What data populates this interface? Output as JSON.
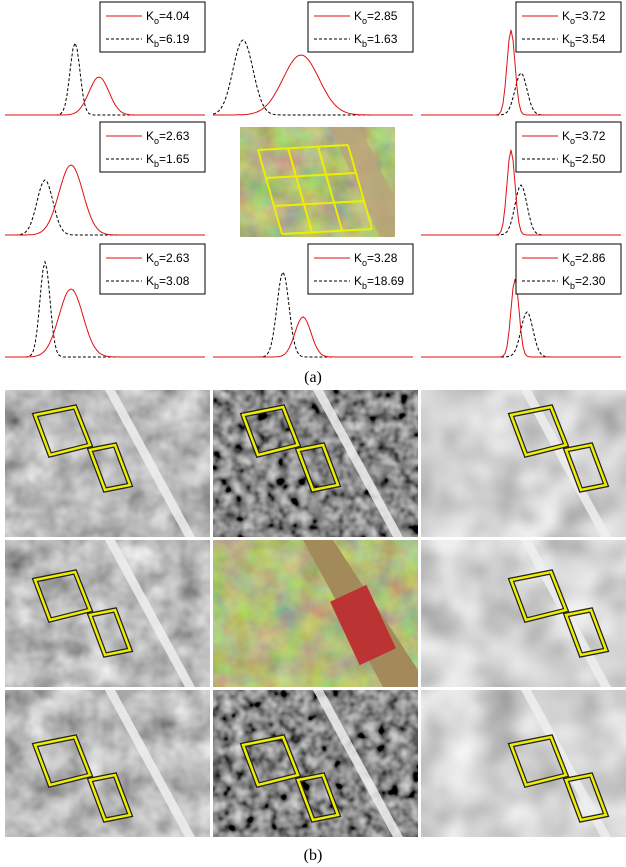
{
  "panels": [
    {
      "legend": [
        {
          "symbol": "K",
          "subscript": "o",
          "text": "=4.04"
        },
        {
          "symbol": "K",
          "subscript": "b",
          "text": "=6.19"
        }
      ]
    },
    {
      "legend": [
        {
          "symbol": "K",
          "subscript": "o",
          "text": "=2.85"
        },
        {
          "symbol": "K",
          "subscript": "b",
          "text": "=1.63"
        }
      ]
    },
    {
      "legend": [
        {
          "symbol": "K",
          "subscript": "o",
          "text": "=3.72"
        },
        {
          "symbol": "K",
          "subscript": "b",
          "text": "=3.54"
        }
      ]
    },
    {
      "legend": [
        {
          "symbol": "K",
          "subscript": "o",
          "text": "=2.63"
        },
        {
          "symbol": "K",
          "subscript": "b",
          "text": "=1.65"
        }
      ]
    },
    {
      "legend": [
        {
          "symbol": "K",
          "subscript": "o",
          "text": "=3.72"
        },
        {
          "symbol": "K",
          "subscript": "b",
          "text": "=2.50"
        }
      ]
    },
    {
      "legend": [
        {
          "symbol": "K",
          "subscript": "o",
          "text": "=2.63"
        },
        {
          "symbol": "K",
          "subscript": "b",
          "text": "=3.08"
        }
      ]
    },
    {
      "legend": [
        {
          "symbol": "K",
          "subscript": "o",
          "text": "=3.28"
        },
        {
          "symbol": "K",
          "subscript": "b",
          "text": "=18.69"
        }
      ]
    },
    {
      "legend": [
        {
          "symbol": "K",
          "subscript": "o",
          "text": "=2.86"
        },
        {
          "symbol": "K",
          "subscript": "b",
          "text": "=2.30"
        }
      ]
    }
  ],
  "captions": {
    "a": "(a)",
    "b": "(b)"
  }
}
